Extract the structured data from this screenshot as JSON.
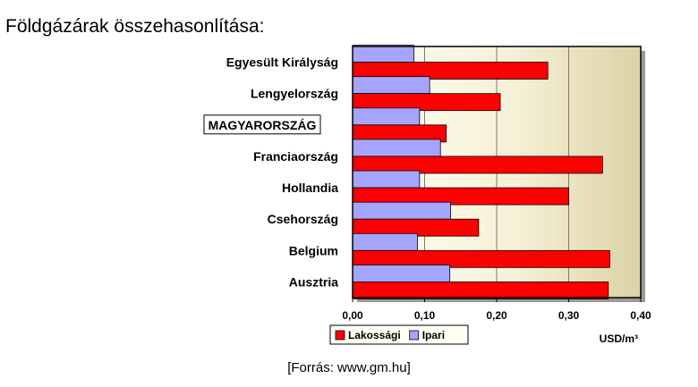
{
  "page": {
    "title": "Földgázárak összehasonlítása:",
    "source": "[Forrás: www.gm.hu]"
  },
  "chart_data": {
    "type": "bar",
    "orientation": "horizontal",
    "title": "",
    "xlabel": "USD/m³",
    "categories": [
      "Egyesült Királyság",
      "Lengyelország",
      "MAGYARORSZÁG",
      "Franciaország",
      "Hollandia",
      "Csehország",
      "Belgium",
      "Ausztria"
    ],
    "highlighted_category": "MAGYARORSZÁG",
    "series": [
      {
        "name": "Ipari",
        "color": "#a5a5ff",
        "values": [
          0.085,
          0.107,
          0.093,
          0.122,
          0.093,
          0.136,
          0.09,
          0.135
        ]
      },
      {
        "name": "Lakossági",
        "color": "#ff0000",
        "values": [
          0.271,
          0.205,
          0.13,
          0.347,
          0.3,
          0.175,
          0.357,
          0.355
        ]
      }
    ],
    "xlim": [
      0,
      0.4
    ],
    "xticks": [
      0,
      0.1,
      0.2,
      0.3,
      0.4
    ],
    "xtick_labels": [
      "0,00",
      "0,10",
      "0,20",
      "0,30",
      "0,40"
    ],
    "grid": true,
    "legend": {
      "position": "bottom-left",
      "items": [
        "Lakossági",
        "Ipari"
      ]
    },
    "colors": {
      "plot_background": "#fffff0",
      "plot_background_right": "#e3d9b2",
      "frame": "#000000"
    }
  }
}
